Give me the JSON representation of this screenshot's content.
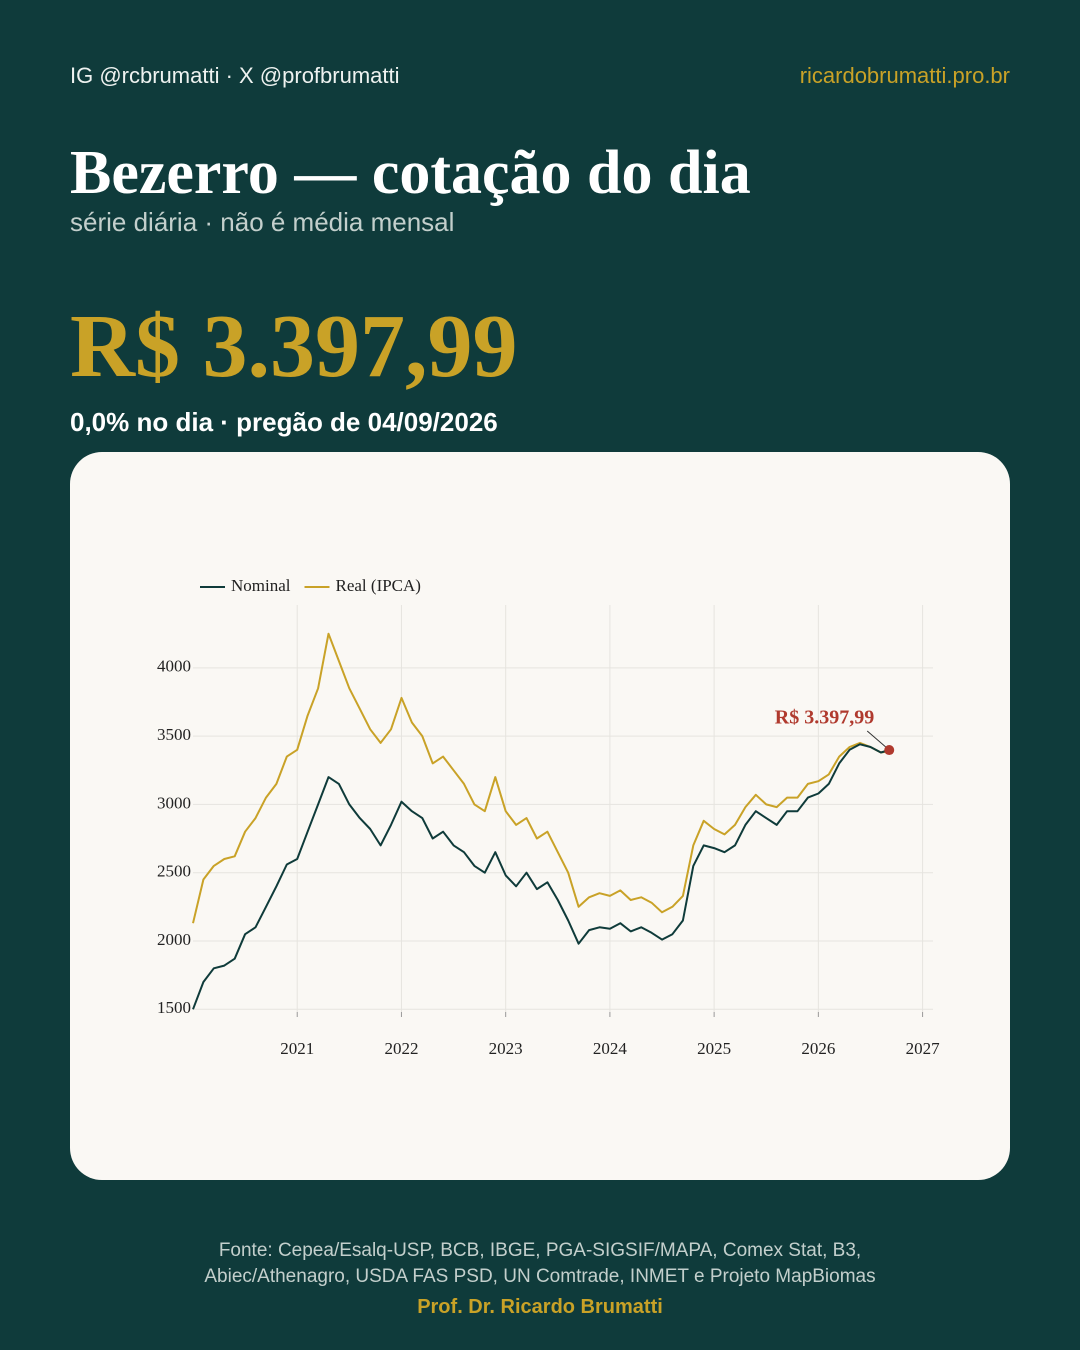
{
  "header": {
    "handles": "IG @rcbrumatti · X @profbrumatti",
    "site": "ricardobrumatti.pro.br",
    "title": "Bezerro — cotação do dia",
    "subtitle": "série diária · não é média mensal",
    "price": "R$ 3.397,99",
    "change": "0,0% no dia · pregão de 04/09/2026"
  },
  "chart_data": {
    "type": "line",
    "x": [
      2020.0,
      2020.1,
      2020.2,
      2020.3,
      2020.4,
      2020.5,
      2020.6,
      2020.7,
      2020.8,
      2020.9,
      2021.0,
      2021.1,
      2021.2,
      2021.3,
      2021.4,
      2021.5,
      2021.6,
      2021.7,
      2021.8,
      2021.9,
      2022.0,
      2022.1,
      2022.2,
      2022.3,
      2022.4,
      2022.5,
      2022.6,
      2022.7,
      2022.8,
      2022.9,
      2023.0,
      2023.1,
      2023.2,
      2023.3,
      2023.4,
      2023.5,
      2023.6,
      2023.7,
      2023.8,
      2023.9,
      2024.0,
      2024.1,
      2024.2,
      2024.3,
      2024.4,
      2024.5,
      2024.6,
      2024.7,
      2024.8,
      2024.9,
      2025.0,
      2025.1,
      2025.2,
      2025.3,
      2025.4,
      2025.5,
      2025.6,
      2025.7,
      2025.8,
      2025.9,
      2026.0,
      2026.1,
      2026.2,
      2026.3,
      2026.4,
      2026.5,
      2026.6,
      2026.68
    ],
    "series": [
      {
        "name": "Nominal",
        "color": "#0f3b3a",
        "values": [
          1500,
          1700,
          1800,
          1820,
          1870,
          2050,
          2100,
          2250,
          2400,
          2560,
          2600,
          2800,
          3000,
          3200,
          3150,
          3000,
          2900,
          2820,
          2700,
          2850,
          3020,
          2950,
          2900,
          2750,
          2800,
          2700,
          2650,
          2550,
          2500,
          2650,
          2480,
          2400,
          2500,
          2380,
          2430,
          2300,
          2150,
          1980,
          2080,
          2100,
          2090,
          2130,
          2070,
          2100,
          2060,
          2010,
          2050,
          2150,
          2550,
          2700,
          2680,
          2650,
          2700,
          2850,
          2950,
          2900,
          2850,
          2950,
          2950,
          3050,
          3080,
          3150,
          3300,
          3400,
          3440,
          3420,
          3380,
          3397.99
        ]
      },
      {
        "name": "Real (IPCA)",
        "color": "#c9a227",
        "values": [
          2130,
          2450,
          2550,
          2600,
          2620,
          2800,
          2900,
          3050,
          3150,
          3350,
          3400,
          3650,
          3850,
          4250,
          4050,
          3850,
          3700,
          3550,
          3450,
          3550,
          3780,
          3600,
          3500,
          3300,
          3350,
          3250,
          3150,
          3000,
          2950,
          3200,
          2950,
          2850,
          2900,
          2750,
          2800,
          2650,
          2500,
          2250,
          2320,
          2350,
          2330,
          2370,
          2300,
          2320,
          2280,
          2210,
          2250,
          2330,
          2700,
          2880,
          2820,
          2780,
          2850,
          2980,
          3070,
          3000,
          2980,
          3050,
          3050,
          3150,
          3170,
          3220,
          3350,
          3420,
          3450,
          3420,
          3380,
          3390
        ]
      }
    ],
    "xlim": [
      2020.0,
      2027.1
    ],
    "xticks": [
      2021,
      2022,
      2023,
      2024,
      2025,
      2026,
      2027
    ],
    "ylim": [
      1480,
      4460
    ],
    "yticks": [
      1500,
      2000,
      2500,
      3000,
      3500,
      4000
    ],
    "grid": true,
    "legend": "top-left",
    "annotation": {
      "x": 2026.68,
      "value": 3397.99,
      "label": "R$ 3.397,99",
      "color": "#b03a2e"
    }
  },
  "footer": {
    "source": "Fonte: Cepea/Esalq-USP, BCB, IBGE, PGA-SIGSIF/MAPA, Comex Stat, B3, Abiec/Athenagro, USDA FAS PSD, UN Comtrade, INMET e Projeto MapBiomas",
    "author": "Prof. Dr. Ricardo Brumatti"
  }
}
